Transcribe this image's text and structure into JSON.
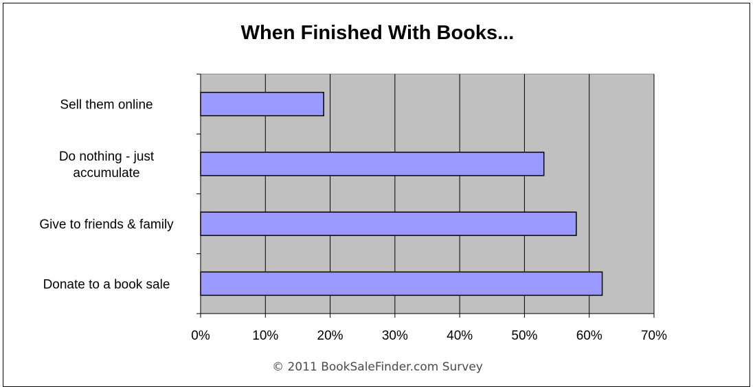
{
  "chart_data": {
    "type": "bar",
    "orientation": "horizontal",
    "title": "When Finished With Books...",
    "categories": [
      "Donate to a book sale",
      "Give to friends & family",
      "Do nothing - just accumulate",
      "Sell them online"
    ],
    "category_lines": [
      [
        "Donate to a book sale"
      ],
      [
        "Give to friends & family"
      ],
      [
        "Do nothing - just",
        "accumulate"
      ],
      [
        "Sell them online"
      ]
    ],
    "values": [
      62,
      58,
      53,
      19
    ],
    "xlim": [
      0,
      70
    ],
    "xticks": [
      0,
      10,
      20,
      30,
      40,
      50,
      60,
      70
    ],
    "tick_suffix": "%",
    "xlabel": "",
    "ylabel": "",
    "grid": true,
    "legend": "none",
    "colors": {
      "bar_fill": "#9999ff",
      "bar_stroke": "#000000",
      "plot_background": "#c0c0c0",
      "gridline": "#000000"
    },
    "footer": "© 2011 BookSaleFinder.com Survey"
  }
}
